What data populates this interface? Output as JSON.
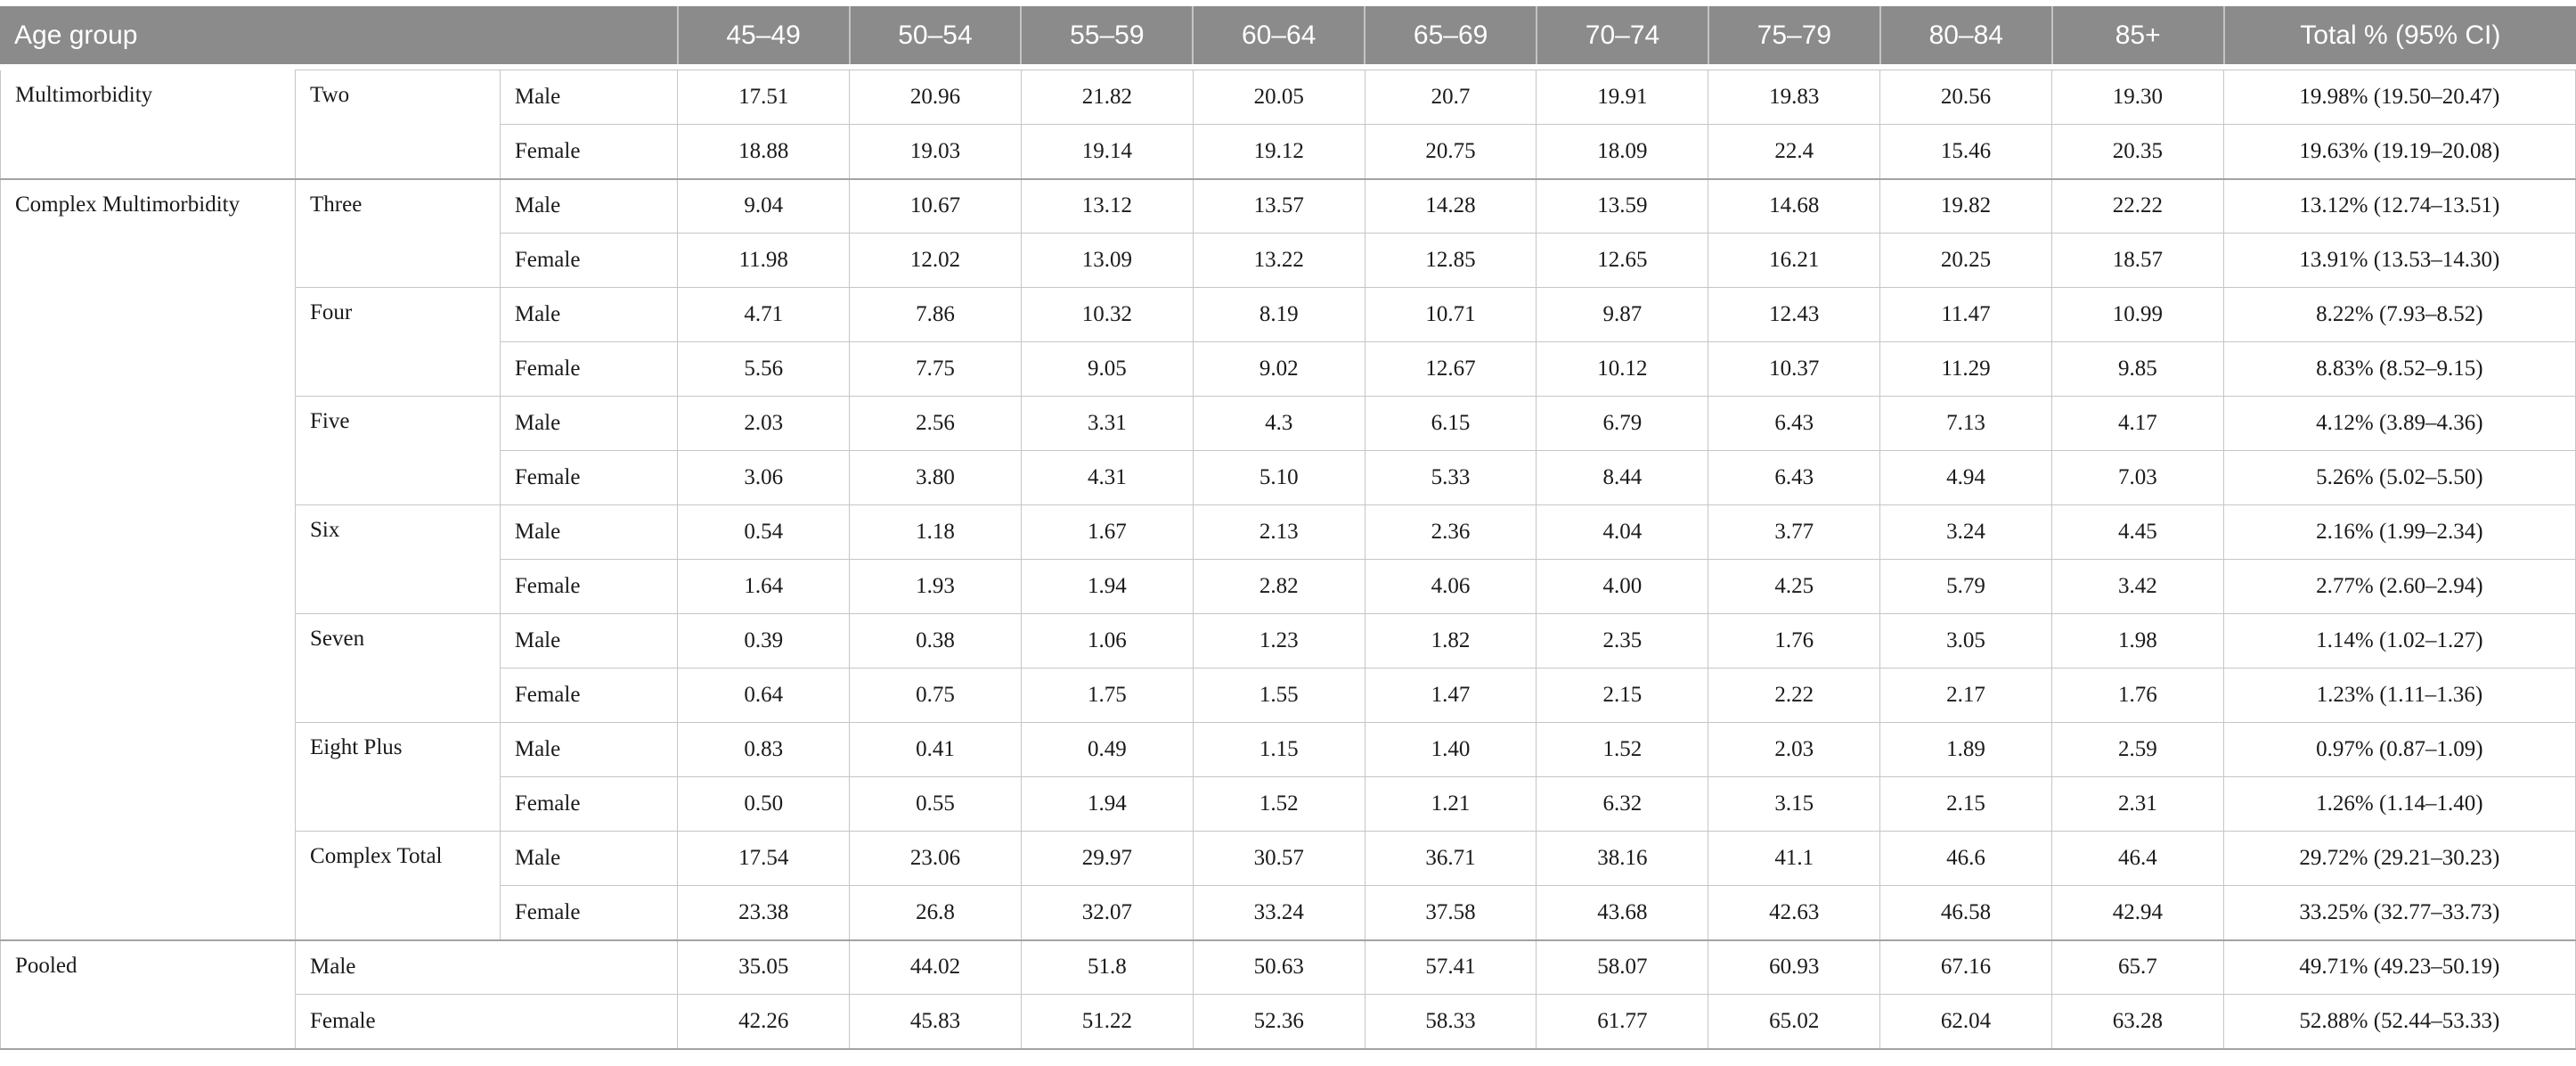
{
  "style": {
    "header_bg": "#8b8b8b",
    "header_text": "#ffffff",
    "grid_line": "#c6c6c6",
    "section_line": "#a3a3a3",
    "body_text": "#1a1a1a"
  },
  "table": {
    "header": {
      "age_group_label": "Age group",
      "age_columns": [
        "45–49",
        "50–54",
        "55–59",
        "60–64",
        "65–69",
        "70–74",
        "75–79",
        "80–84",
        "85+"
      ],
      "total_label": "Total % (95% CI)"
    },
    "sections": [
      {
        "category": "Multimorbidity",
        "groups": [
          {
            "name": "Two",
            "rows": [
              {
                "sex": "Male",
                "values": [
                  "17.51",
                  "20.96",
                  "21.82",
                  "20.05",
                  "20.7",
                  "19.91",
                  "19.83",
                  "20.56",
                  "19.30"
                ],
                "total": "19.98% (19.50–20.47)"
              },
              {
                "sex": "Female",
                "values": [
                  "18.88",
                  "19.03",
                  "19.14",
                  "19.12",
                  "20.75",
                  "18.09",
                  "22.4",
                  "15.46",
                  "20.35"
                ],
                "total": "19.63% (19.19–20.08)"
              }
            ]
          }
        ]
      },
      {
        "category": "Complex Multimorbidity",
        "groups": [
          {
            "name": "Three",
            "rows": [
              {
                "sex": "Male",
                "values": [
                  "9.04",
                  "10.67",
                  "13.12",
                  "13.57",
                  "14.28",
                  "13.59",
                  "14.68",
                  "19.82",
                  "22.22"
                ],
                "total": "13.12% (12.74–13.51)"
              },
              {
                "sex": "Female",
                "values": [
                  "11.98",
                  "12.02",
                  "13.09",
                  "13.22",
                  "12.85",
                  "12.65",
                  "16.21",
                  "20.25",
                  "18.57"
                ],
                "total": "13.91% (13.53–14.30)"
              }
            ]
          },
          {
            "name": "Four",
            "rows": [
              {
                "sex": "Male",
                "values": [
                  "4.71",
                  "7.86",
                  "10.32",
                  "8.19",
                  "10.71",
                  "9.87",
                  "12.43",
                  "11.47",
                  "10.99"
                ],
                "total": "8.22% (7.93–8.52)"
              },
              {
                "sex": "Female",
                "values": [
                  "5.56",
                  "7.75",
                  "9.05",
                  "9.02",
                  "12.67",
                  "10.12",
                  "10.37",
                  "11.29",
                  "9.85"
                ],
                "total": "8.83% (8.52–9.15)"
              }
            ]
          },
          {
            "name": "Five",
            "rows": [
              {
                "sex": "Male",
                "values": [
                  "2.03",
                  "2.56",
                  "3.31",
                  "4.3",
                  "6.15",
                  "6.79",
                  "6.43",
                  "7.13",
                  "4.17"
                ],
                "total": "4.12% (3.89–4.36)"
              },
              {
                "sex": "Female",
                "values": [
                  "3.06",
                  "3.80",
                  "4.31",
                  "5.10",
                  "5.33",
                  "8.44",
                  "6.43",
                  "4.94",
                  "7.03"
                ],
                "total": "5.26% (5.02–5.50)"
              }
            ]
          },
          {
            "name": "Six",
            "rows": [
              {
                "sex": "Male",
                "values": [
                  "0.54",
                  "1.18",
                  "1.67",
                  "2.13",
                  "2.36",
                  "4.04",
                  "3.77",
                  "3.24",
                  "4.45"
                ],
                "total": "2.16% (1.99–2.34)"
              },
              {
                "sex": "Female",
                "values": [
                  "1.64",
                  "1.93",
                  "1.94",
                  "2.82",
                  "4.06",
                  "4.00",
                  "4.25",
                  "5.79",
                  "3.42"
                ],
                "total": "2.77% (2.60–2.94)"
              }
            ]
          },
          {
            "name": "Seven",
            "rows": [
              {
                "sex": "Male",
                "values": [
                  "0.39",
                  "0.38",
                  "1.06",
                  "1.23",
                  "1.82",
                  "2.35",
                  "1.76",
                  "3.05",
                  "1.98"
                ],
                "total": "1.14% (1.02–1.27)"
              },
              {
                "sex": "Female",
                "values": [
                  "0.64",
                  "0.75",
                  "1.75",
                  "1.55",
                  "1.47",
                  "2.15",
                  "2.22",
                  "2.17",
                  "1.76"
                ],
                "total": "1.23% (1.11–1.36)"
              }
            ]
          },
          {
            "name": "Eight Plus",
            "rows": [
              {
                "sex": "Male",
                "values": [
                  "0.83",
                  "0.41",
                  "0.49",
                  "1.15",
                  "1.40",
                  "1.52",
                  "2.03",
                  "1.89",
                  "2.59"
                ],
                "total": "0.97% (0.87–1.09)"
              },
              {
                "sex": "Female",
                "values": [
                  "0.50",
                  "0.55",
                  "1.94",
                  "1.52",
                  "1.21",
                  "6.32",
                  "3.15",
                  "2.15",
                  "2.31"
                ],
                "total": "1.26% (1.14–1.40)"
              }
            ]
          },
          {
            "name": "Complex Total",
            "rows": [
              {
                "sex": "Male",
                "values": [
                  "17.54",
                  "23.06",
                  "29.97",
                  "30.57",
                  "36.71",
                  "38.16",
                  "41.1",
                  "46.6",
                  "46.4"
                ],
                "total": "29.72% (29.21–30.23)"
              },
              {
                "sex": "Female",
                "values": [
                  "23.38",
                  "26.8",
                  "32.07",
                  "33.24",
                  "37.58",
                  "43.68",
                  "42.63",
                  "46.58",
                  "42.94"
                ],
                "total": "33.25% (32.77–33.73)"
              }
            ]
          }
        ]
      },
      {
        "category": "Pooled",
        "groups": [
          {
            "name": null,
            "rows": [
              {
                "sex": "Male",
                "values": [
                  "35.05",
                  "44.02",
                  "51.8",
                  "50.63",
                  "57.41",
                  "58.07",
                  "60.93",
                  "67.16",
                  "65.7"
                ],
                "total": "49.71% (49.23–50.19)"
              },
              {
                "sex": "Female",
                "values": [
                  "42.26",
                  "45.83",
                  "51.22",
                  "52.36",
                  "58.33",
                  "61.77",
                  "65.02",
                  "62.04",
                  "63.28"
                ],
                "total": "52.88% (52.44–53.33)"
              }
            ]
          }
        ]
      }
    ]
  }
}
